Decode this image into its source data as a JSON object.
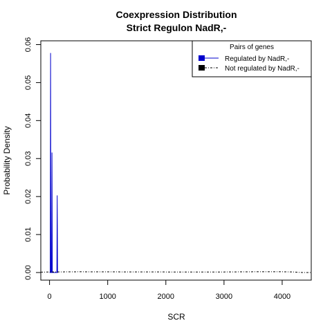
{
  "chart_data": {
    "type": "line",
    "title": [
      "Coexpression Distribution",
      "Strict Regulon NadR,-"
    ],
    "xlabel": "SCR",
    "ylabel": "Probability Density",
    "xlim": [
      -150,
      4500
    ],
    "ylim": [
      -0.002,
      0.061
    ],
    "xticks": [
      0,
      1000,
      2000,
      3000,
      4000
    ],
    "yticks": [
      0.0,
      0.01,
      0.02,
      0.03,
      0.04,
      0.05,
      0.06
    ],
    "xtick_labels": [
      "0",
      "1000",
      "2000",
      "3000",
      "4000"
    ],
    "ytick_labels": [
      "0.00",
      "0.01",
      "0.02",
      "0.03",
      "0.04",
      "0.05",
      "0.06"
    ],
    "legend": {
      "title": "Pairs of genes",
      "position": "top-right",
      "entries": [
        {
          "label": "Regulated by  NadR,-",
          "color": "#0000cc",
          "line": "solid"
        },
        {
          "label": "Not regulated by  NadR,-",
          "color": "#000000",
          "line": "dash-dot"
        }
      ]
    },
    "series": [
      {
        "name": "Regulated by  NadR,-",
        "color": "#0000cc",
        "x": [
          0,
          12,
          18,
          24,
          30,
          36,
          42,
          48,
          54,
          120,
          126,
          132,
          138,
          144
        ],
        "y": [
          0,
          0,
          0.0578,
          0,
          0,
          0,
          0.0316,
          0,
          0,
          0,
          0,
          0.0203,
          0,
          0
        ]
      },
      {
        "name": "Not regulated by  NadR,-",
        "color": "#000000",
        "x": [
          -150,
          0,
          500,
          1000,
          2000,
          3000,
          3500,
          4000,
          4200,
          4300,
          4500
        ],
        "y": [
          0.0001,
          0.00015,
          0.0002,
          0.00018,
          0.00015,
          0.00015,
          0.0002,
          0.0002,
          0.00015,
          2e-05,
          0.0
        ]
      }
    ]
  }
}
